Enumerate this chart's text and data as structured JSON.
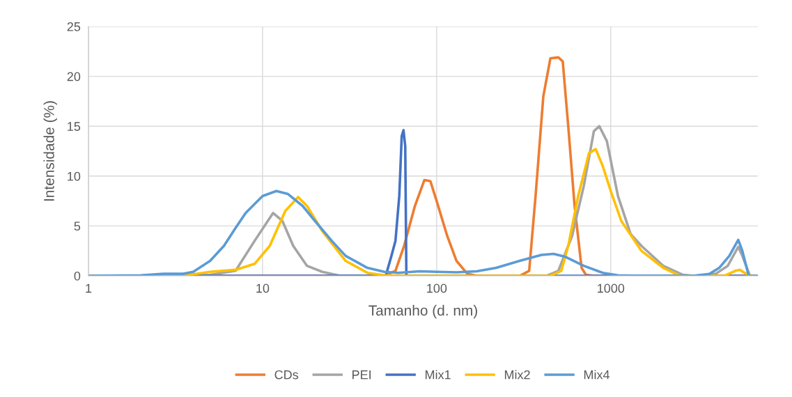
{
  "chart_data": {
    "type": "line",
    "xlabel": "Tamanho (d. nm)",
    "ylabel": "Intensidade (%)",
    "log": "x",
    "xlim": [
      1,
      7000
    ],
    "xticks": [
      1,
      10,
      100,
      1000
    ],
    "ylim": [
      0,
      25
    ],
    "yticks": [
      0,
      5,
      10,
      15,
      20,
      25
    ],
    "grid": true,
    "legend": "bottom",
    "marker": "none",
    "line_style": "solid",
    "series": [
      {
        "name": "CDs",
        "color": "#ed7d31",
        "x": [
          1,
          50,
          58,
          65,
          75,
          85,
          92,
          100,
          115,
          130,
          150,
          170,
          300,
          340,
          370,
          410,
          450,
          500,
          530,
          570,
          620,
          680,
          720,
          800,
          7000
        ],
        "values": [
          0,
          0,
          0.5,
          3,
          7,
          9.6,
          9.5,
          7.5,
          4,
          1.5,
          0.2,
          0,
          0,
          0.5,
          8,
          18,
          21.8,
          21.9,
          21.5,
          15,
          7,
          0.8,
          0.1,
          0,
          0
        ]
      },
      {
        "name": "PEI",
        "color": "#a5a5a5",
        "x": [
          1,
          3.5,
          5,
          7,
          9,
          11.5,
          13,
          15,
          18,
          22,
          28,
          430,
          500,
          600,
          700,
          800,
          860,
          950,
          1100,
          1300,
          1500,
          2000,
          2600,
          3000,
          4000,
          4700,
          5400,
          5700,
          6300,
          7000
        ],
        "values": [
          0,
          0,
          0.1,
          0.5,
          3.5,
          6.3,
          5.5,
          3,
          1,
          0.4,
          0,
          0,
          0.5,
          4,
          9,
          14.5,
          15,
          13.5,
          8,
          4.2,
          3,
          1,
          0.1,
          0,
          0.2,
          1,
          2.9,
          2,
          0,
          0
        ]
      },
      {
        "name": "Mix1",
        "color": "#4472c4",
        "x": [
          1,
          51,
          55,
          58,
          61,
          63,
          64.5,
          66,
          67,
          7000
        ],
        "values": [
          0,
          0,
          2,
          3.5,
          8,
          14,
          14.6,
          13,
          0,
          0
        ]
      },
      {
        "name": "Mix2",
        "color": "#ffc000",
        "x": [
          1,
          2,
          3.5,
          5,
          7,
          9,
          11,
          13.5,
          16,
          18,
          22,
          30,
          40,
          50,
          60,
          450,
          520,
          570,
          650,
          750,
          820,
          900,
          1000,
          1150,
          1500,
          2000,
          2500,
          4500,
          5200,
          5500,
          6000,
          6500,
          7000
        ],
        "values": [
          0,
          0,
          0,
          0.4,
          0.6,
          1.2,
          3,
          6.5,
          7.9,
          7,
          4.5,
          1.5,
          0.3,
          0.05,
          0,
          0,
          0.5,
          3,
          8,
          12.3,
          12.7,
          11,
          8.5,
          5.5,
          2.5,
          0.8,
          0,
          0,
          0.5,
          0.6,
          0.2,
          0,
          0
        ]
      },
      {
        "name": "Mix4",
        "color": "#5b9bd5",
        "x": [
          1,
          2,
          2.7,
          3.5,
          4,
          5,
          6,
          7,
          8,
          10,
          12,
          14,
          17,
          20,
          25,
          30,
          40,
          50,
          60,
          80,
          100,
          130,
          170,
          220,
          300,
          400,
          470,
          550,
          700,
          900,
          1100,
          1500,
          3000,
          3700,
          4200,
          4800,
          5400,
          5700,
          6200,
          7000
        ],
        "values": [
          0,
          0.05,
          0.2,
          0.2,
          0.4,
          1.5,
          3,
          4.8,
          6.3,
          8,
          8.5,
          8.2,
          7,
          5.5,
          3.5,
          2,
          0.8,
          0.4,
          0.3,
          0.45,
          0.4,
          0.35,
          0.45,
          0.8,
          1.5,
          2.1,
          2.2,
          1.9,
          1,
          0.3,
          0.05,
          0,
          0,
          0.2,
          0.8,
          2,
          3.6,
          2.5,
          0,
          0
        ]
      }
    ]
  }
}
